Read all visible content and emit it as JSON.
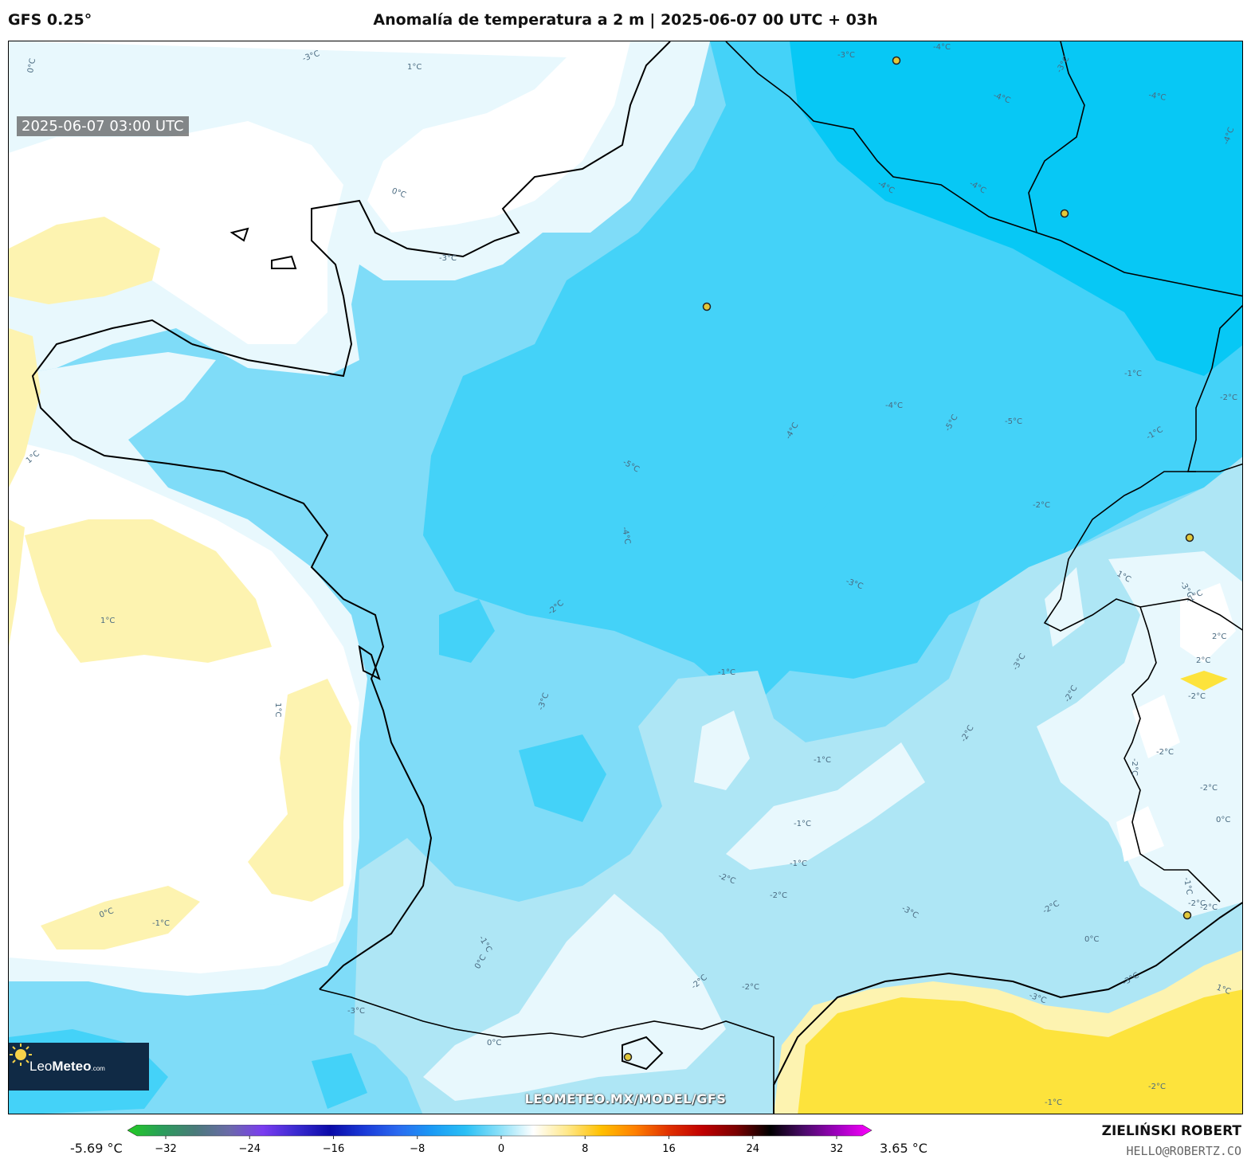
{
  "header": {
    "model": "GFS 0.25°",
    "title": "Anomalía de temperatura a 2 m | 2025-06-07 00 UTC + 03h"
  },
  "map": {
    "valid_time": "2025-06-07 03:00 UTC",
    "watermark": "LEOMETEO.MX/MODEL/GFS",
    "logo": {
      "brand_light": "Leo",
      "brand_bold": "Meteo",
      "suffix": ".com"
    },
    "contour_labels": [
      "0°C",
      "-3°C",
      "1°C",
      "0°C",
      "-3°C",
      "-3°C",
      "-4°C",
      "-4°C",
      "-4°C",
      "-4°C",
      "-4°C",
      "-3°C",
      "-4°C",
      "-5°C",
      "-4°C",
      "-5°C",
      "-5°C",
      "-4°C",
      "-4°C",
      "-3°C",
      "-2°C",
      "-1°C",
      "-2°C",
      "-1°C",
      "1°C",
      "1°C",
      "1°C",
      "0°C",
      "-1°C",
      "-3°C",
      "-1°C",
      "-1°C",
      "-1°C",
      "-2°C",
      "-1°C",
      "-3°C",
      "-2°C",
      "-1°C",
      "0°C",
      "-2°C",
      "-3°C",
      "0°C",
      "-2°C",
      "-2°C",
      "-1°C",
      "0°C",
      "-1°C",
      "-2°C",
      "-2°C",
      "0°C",
      "-2°C",
      "2°C",
      "-2°C",
      "2°C",
      "-3°C",
      "1°C",
      "-2°C",
      "-3°C",
      "-3°C",
      "-2°C",
      "-2°C",
      "-3°C",
      "-2°C",
      "-2°C",
      "1°C",
      "-1°C",
      "-2°C"
    ],
    "colors": {
      "anom_pos1": "#fdf3b0",
      "anom_pos2": "#fde33c",
      "anom_zero": "#ffffff",
      "anom_m1": "#e8f8fd",
      "anom_m2": "#aee6f5",
      "anom_m3": "#7fdcf8",
      "anom_m4": "#44d2f8",
      "anom_m5": "#07c8f5",
      "coast": "#000000",
      "city_marker": "#e2c83a"
    }
  },
  "colorbar": {
    "min_label": "-5.69 °C",
    "max_label": "3.65 °C",
    "range": [
      -32,
      32
    ],
    "ticks": [
      "−32",
      "−24",
      "−16",
      "−8",
      "0",
      "8",
      "16",
      "24",
      "32"
    ],
    "stops": [
      "#22cc22",
      "#2a9e5a",
      "#4a7a7a",
      "#6a6aa8",
      "#7a3cf0",
      "#3a2ad0",
      "#0a0aa8",
      "#1a3ad8",
      "#2a6af0",
      "#1a9af5",
      "#2ac0f5",
      "#8ae0f8",
      "#ffffff",
      "#ffe88a",
      "#ffc000",
      "#ff8000",
      "#e03000",
      "#c00000",
      "#7a0000",
      "#000000",
      "#4a0a6a",
      "#a000c0",
      "#ff00ff"
    ]
  },
  "credits": {
    "author": "ZIELIŃSKI ROBERT",
    "email": "HELLO@ROBERTZ.CO"
  }
}
